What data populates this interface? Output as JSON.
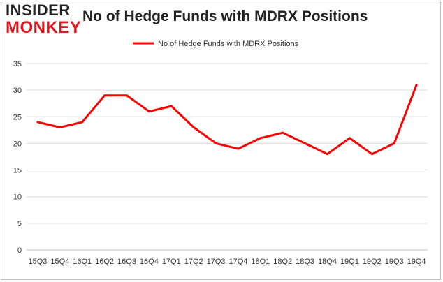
{
  "logo": {
    "line1": "INSIDER",
    "line2": "MONKEY"
  },
  "chart_data": {
    "type": "line",
    "title": "No of Hedge Funds with MDRX Positions",
    "xlabel": "",
    "ylabel": "",
    "categories": [
      "15Q3",
      "15Q4",
      "16Q1",
      "16Q2",
      "16Q3",
      "16Q4",
      "17Q1",
      "17Q2",
      "17Q3",
      "17Q4",
      "18Q1",
      "18Q2",
      "18Q3",
      "18Q4",
      "19Q1",
      "19Q2",
      "19Q3",
      "19Q4"
    ],
    "series": [
      {
        "name": "No of Hedge Funds with MDRX Positions",
        "color": "#ff0000",
        "values": [
          24,
          23,
          24,
          29,
          29,
          26,
          27,
          23,
          20,
          19,
          21,
          22,
          20,
          18,
          21,
          18,
          20,
          31
        ]
      }
    ],
    "ylim": [
      0,
      35
    ],
    "yticks": [
      0,
      5,
      10,
      15,
      20,
      25,
      30,
      35
    ],
    "grid": true,
    "legend": "top-center"
  }
}
